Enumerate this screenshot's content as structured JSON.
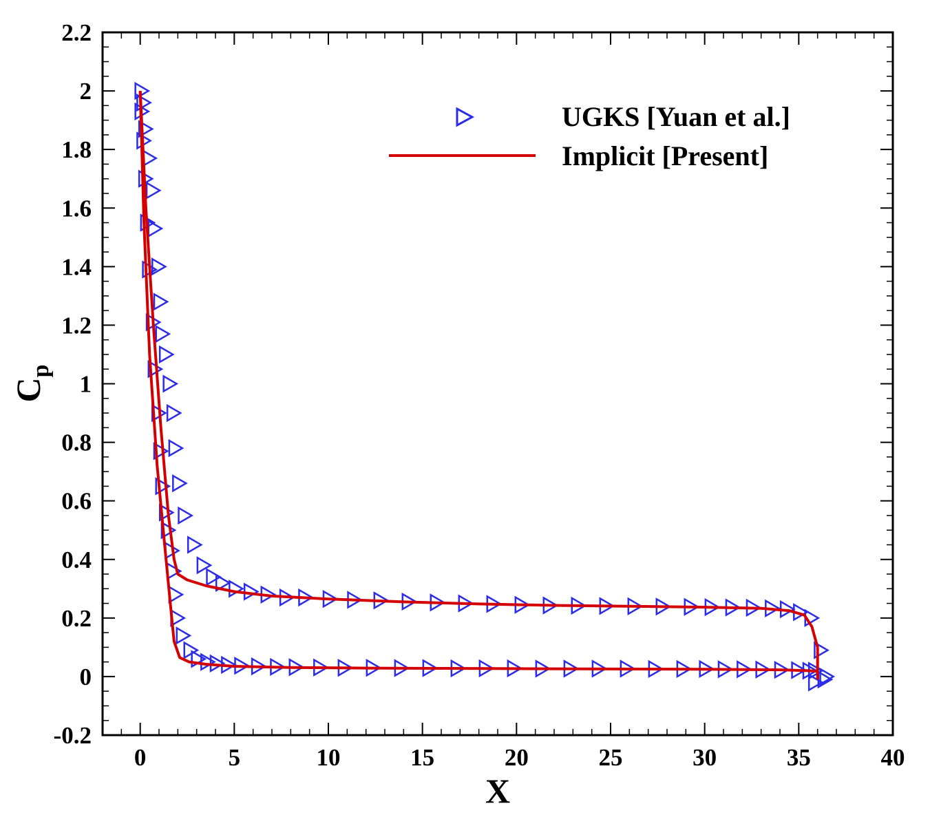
{
  "chart_data": {
    "type": "line",
    "xlabel": "X",
    "ylabel": "C",
    "ylabel_subscript": "p",
    "xlim": [
      -2,
      40
    ],
    "ylim": [
      -0.2,
      2.2
    ],
    "xticks": [
      "0",
      "5",
      "10",
      "15",
      "20",
      "25",
      "30",
      "35",
      "40"
    ],
    "yticks": [
      "-0.2",
      "0",
      "0.2",
      "0.4",
      "0.6",
      "0.8",
      "1",
      "1.2",
      "1.4",
      "1.6",
      "1.8",
      "2",
      "2.2"
    ],
    "grid": false,
    "legend_position": "top-right",
    "colors": {
      "ugks": "#2b2bea",
      "implicit": "#d40000"
    },
    "series": [
      {
        "name": "UGKS [Yuan et al.]",
        "kind": "markers",
        "marker": "triangle-right",
        "color": "#2b2bea",
        "x": [
          0.0,
          0.1,
          0.2,
          0.4,
          0.6,
          0.7,
          0.9,
          1.0,
          1.1,
          1.3,
          1.5,
          1.7,
          1.8,
          2.0,
          2.3,
          2.8,
          3.3,
          3.8,
          4.3,
          5.0,
          5.8,
          6.7,
          7.7,
          8.7,
          10.0,
          11.3,
          12.7,
          14.2,
          15.7,
          17.2,
          18.7,
          20.2,
          21.7,
          23.2,
          24.7,
          26.2,
          27.7,
          29.2,
          30.3,
          31.4,
          32.5,
          33.5,
          34.3,
          35.0,
          35.6,
          36.1,
          36.4,
          36.3,
          35.8,
          0.0,
          0.1,
          0.2,
          0.3,
          0.4,
          0.6,
          0.7,
          0.9,
          1.0,
          1.1,
          1.3,
          1.4,
          1.6,
          1.7,
          1.8,
          1.9,
          2.2,
          2.6,
          3.0,
          3.5,
          4.0,
          4.6,
          5.3,
          6.2,
          7.2,
          8.2,
          9.5,
          10.8,
          12.3,
          13.8,
          15.3,
          16.8,
          18.3,
          19.8,
          21.3,
          22.8,
          24.3,
          25.8,
          27.3,
          28.8,
          30.0,
          31.0,
          32.0,
          33.0,
          34.0,
          34.9,
          35.5,
          35.8
        ],
        "y": [
          2.0,
          1.96,
          1.87,
          1.77,
          1.66,
          1.53,
          1.4,
          1.28,
          1.17,
          1.1,
          1.0,
          0.9,
          0.78,
          0.66,
          0.55,
          0.45,
          0.38,
          0.34,
          0.32,
          0.3,
          0.29,
          0.28,
          0.27,
          0.27,
          0.265,
          0.262,
          0.26,
          0.256,
          0.253,
          0.25,
          0.248,
          0.245,
          0.243,
          0.242,
          0.241,
          0.24,
          0.239,
          0.238,
          0.237,
          0.236,
          0.235,
          0.233,
          0.23,
          0.22,
          0.2,
          0.09,
          0.0,
          -0.01,
          -0.02,
          1.93,
          1.83,
          1.7,
          1.55,
          1.39,
          1.21,
          1.05,
          0.9,
          0.77,
          0.65,
          0.56,
          0.5,
          0.43,
          0.36,
          0.28,
          0.2,
          0.14,
          0.09,
          0.06,
          0.05,
          0.045,
          0.04,
          0.037,
          0.035,
          0.033,
          0.032,
          0.031,
          0.03,
          0.03,
          0.029,
          0.029,
          0.028,
          0.028,
          0.028,
          0.027,
          0.027,
          0.027,
          0.027,
          0.026,
          0.026,
          0.026,
          0.025,
          0.025,
          0.024,
          0.023,
          0.022,
          0.02,
          0.02
        ]
      },
      {
        "name": "Implicit [Present]",
        "kind": "line",
        "color": "#d40000",
        "upper": {
          "x": [
            0.0,
            0.3,
            0.7,
            1.1,
            1.5,
            1.8,
            2.0,
            2.5,
            3.5,
            5.0,
            7.0,
            10.0,
            14.0,
            18.0,
            22.0,
            26.0,
            30.0,
            33.0,
            34.5,
            35.3,
            35.7,
            36.0,
            36.0
          ],
          "y": [
            2.0,
            1.6,
            1.2,
            0.85,
            0.55,
            0.4,
            0.35,
            0.33,
            0.31,
            0.29,
            0.275,
            0.265,
            0.255,
            0.248,
            0.243,
            0.24,
            0.237,
            0.233,
            0.225,
            0.21,
            0.17,
            0.1,
            -0.01
          ]
        },
        "lower": {
          "x": [
            0.0,
            0.2,
            0.5,
            0.9,
            1.3,
            1.6,
            1.8,
            2.1,
            2.6,
            3.5,
            5.0,
            8.0,
            12.0,
            16.0,
            20.0,
            25.0,
            30.0,
            34.0,
            35.5,
            36.0
          ],
          "y": [
            2.0,
            1.55,
            1.1,
            0.72,
            0.45,
            0.25,
            0.12,
            0.065,
            0.05,
            0.042,
            0.035,
            0.031,
            0.029,
            0.028,
            0.027,
            0.026,
            0.025,
            0.023,
            0.02,
            0.018
          ]
        }
      }
    ]
  }
}
